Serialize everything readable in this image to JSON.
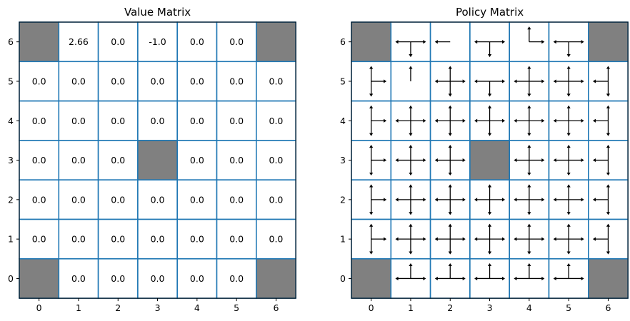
{
  "chart_data": [
    {
      "type": "heatmap",
      "title": "Value Matrix",
      "xlabel": "",
      "ylabel": "",
      "x_ticks": [
        "0",
        "1",
        "2",
        "3",
        "4",
        "5",
        "6"
      ],
      "y_ticks": [
        "0",
        "1",
        "2",
        "3",
        "4",
        "5",
        "6"
      ],
      "xlim": [
        -0.5,
        6.5
      ],
      "ylim": [
        -0.5,
        6.5
      ],
      "blocked_color": "#808080",
      "grid_color": "#1f77b4",
      "rows_top_to_bottom": [
        {
          "y": 6,
          "cells": [
            null,
            "2.66",
            "0.0",
            "-1.0",
            "0.0",
            "0.0",
            null
          ]
        },
        {
          "y": 5,
          "cells": [
            "0.0",
            "0.0",
            "0.0",
            "0.0",
            "0.0",
            "0.0",
            "0.0"
          ]
        },
        {
          "y": 4,
          "cells": [
            "0.0",
            "0.0",
            "0.0",
            "0.0",
            "0.0",
            "0.0",
            "0.0"
          ]
        },
        {
          "y": 3,
          "cells": [
            "0.0",
            "0.0",
            "0.0",
            null,
            "0.0",
            "0.0",
            "0.0"
          ]
        },
        {
          "y": 2,
          "cells": [
            "0.0",
            "0.0",
            "0.0",
            "0.0",
            "0.0",
            "0.0",
            "0.0"
          ]
        },
        {
          "y": 1,
          "cells": [
            "0.0",
            "0.0",
            "0.0",
            "0.0",
            "0.0",
            "0.0",
            "0.0"
          ]
        },
        {
          "y": 0,
          "cells": [
            null,
            "0.0",
            "0.0",
            "0.0",
            "0.0",
            "0.0",
            null
          ]
        }
      ]
    },
    {
      "type": "heatmap",
      "title": "Policy Matrix",
      "xlabel": "",
      "ylabel": "",
      "x_ticks": [
        "0",
        "1",
        "2",
        "3",
        "4",
        "5",
        "6"
      ],
      "y_ticks": [
        "0",
        "1",
        "2",
        "3",
        "4",
        "5",
        "6"
      ],
      "xlim": [
        -0.5,
        6.5
      ],
      "ylim": [
        -0.5,
        6.5
      ],
      "blocked_color": "#808080",
      "grid_color": "#1f77b4",
      "arrow_directions": "U = up, D = down, L = left, R = right",
      "rows_top_to_bottom": [
        {
          "y": 6,
          "cells": [
            null,
            "DLR",
            "L",
            "DLR",
            "UR",
            "DLR",
            null
          ]
        },
        {
          "y": 5,
          "cells": [
            "UDR",
            "U",
            "UDLR",
            "DLR",
            "UDLR",
            "UDLR",
            "UDL"
          ]
        },
        {
          "y": 4,
          "cells": [
            "UDR",
            "UDLR",
            "UDLR",
            "UDLR",
            "UDLR",
            "UDLR",
            "UDL"
          ]
        },
        {
          "y": 3,
          "cells": [
            "UDR",
            "UDLR",
            "UDLR",
            null,
            "UDLR",
            "UDLR",
            "UDL"
          ]
        },
        {
          "y": 2,
          "cells": [
            "UDR",
            "UDLR",
            "UDLR",
            "UDLR",
            "UDLR",
            "UDLR",
            "UDL"
          ]
        },
        {
          "y": 1,
          "cells": [
            "UDR",
            "UDLR",
            "UDLR",
            "UDLR",
            "UDLR",
            "UDLR",
            "UDL"
          ]
        },
        {
          "y": 0,
          "cells": [
            null,
            "ULR",
            "ULR",
            "ULR",
            "ULR",
            "ULR",
            null
          ]
        }
      ]
    }
  ]
}
